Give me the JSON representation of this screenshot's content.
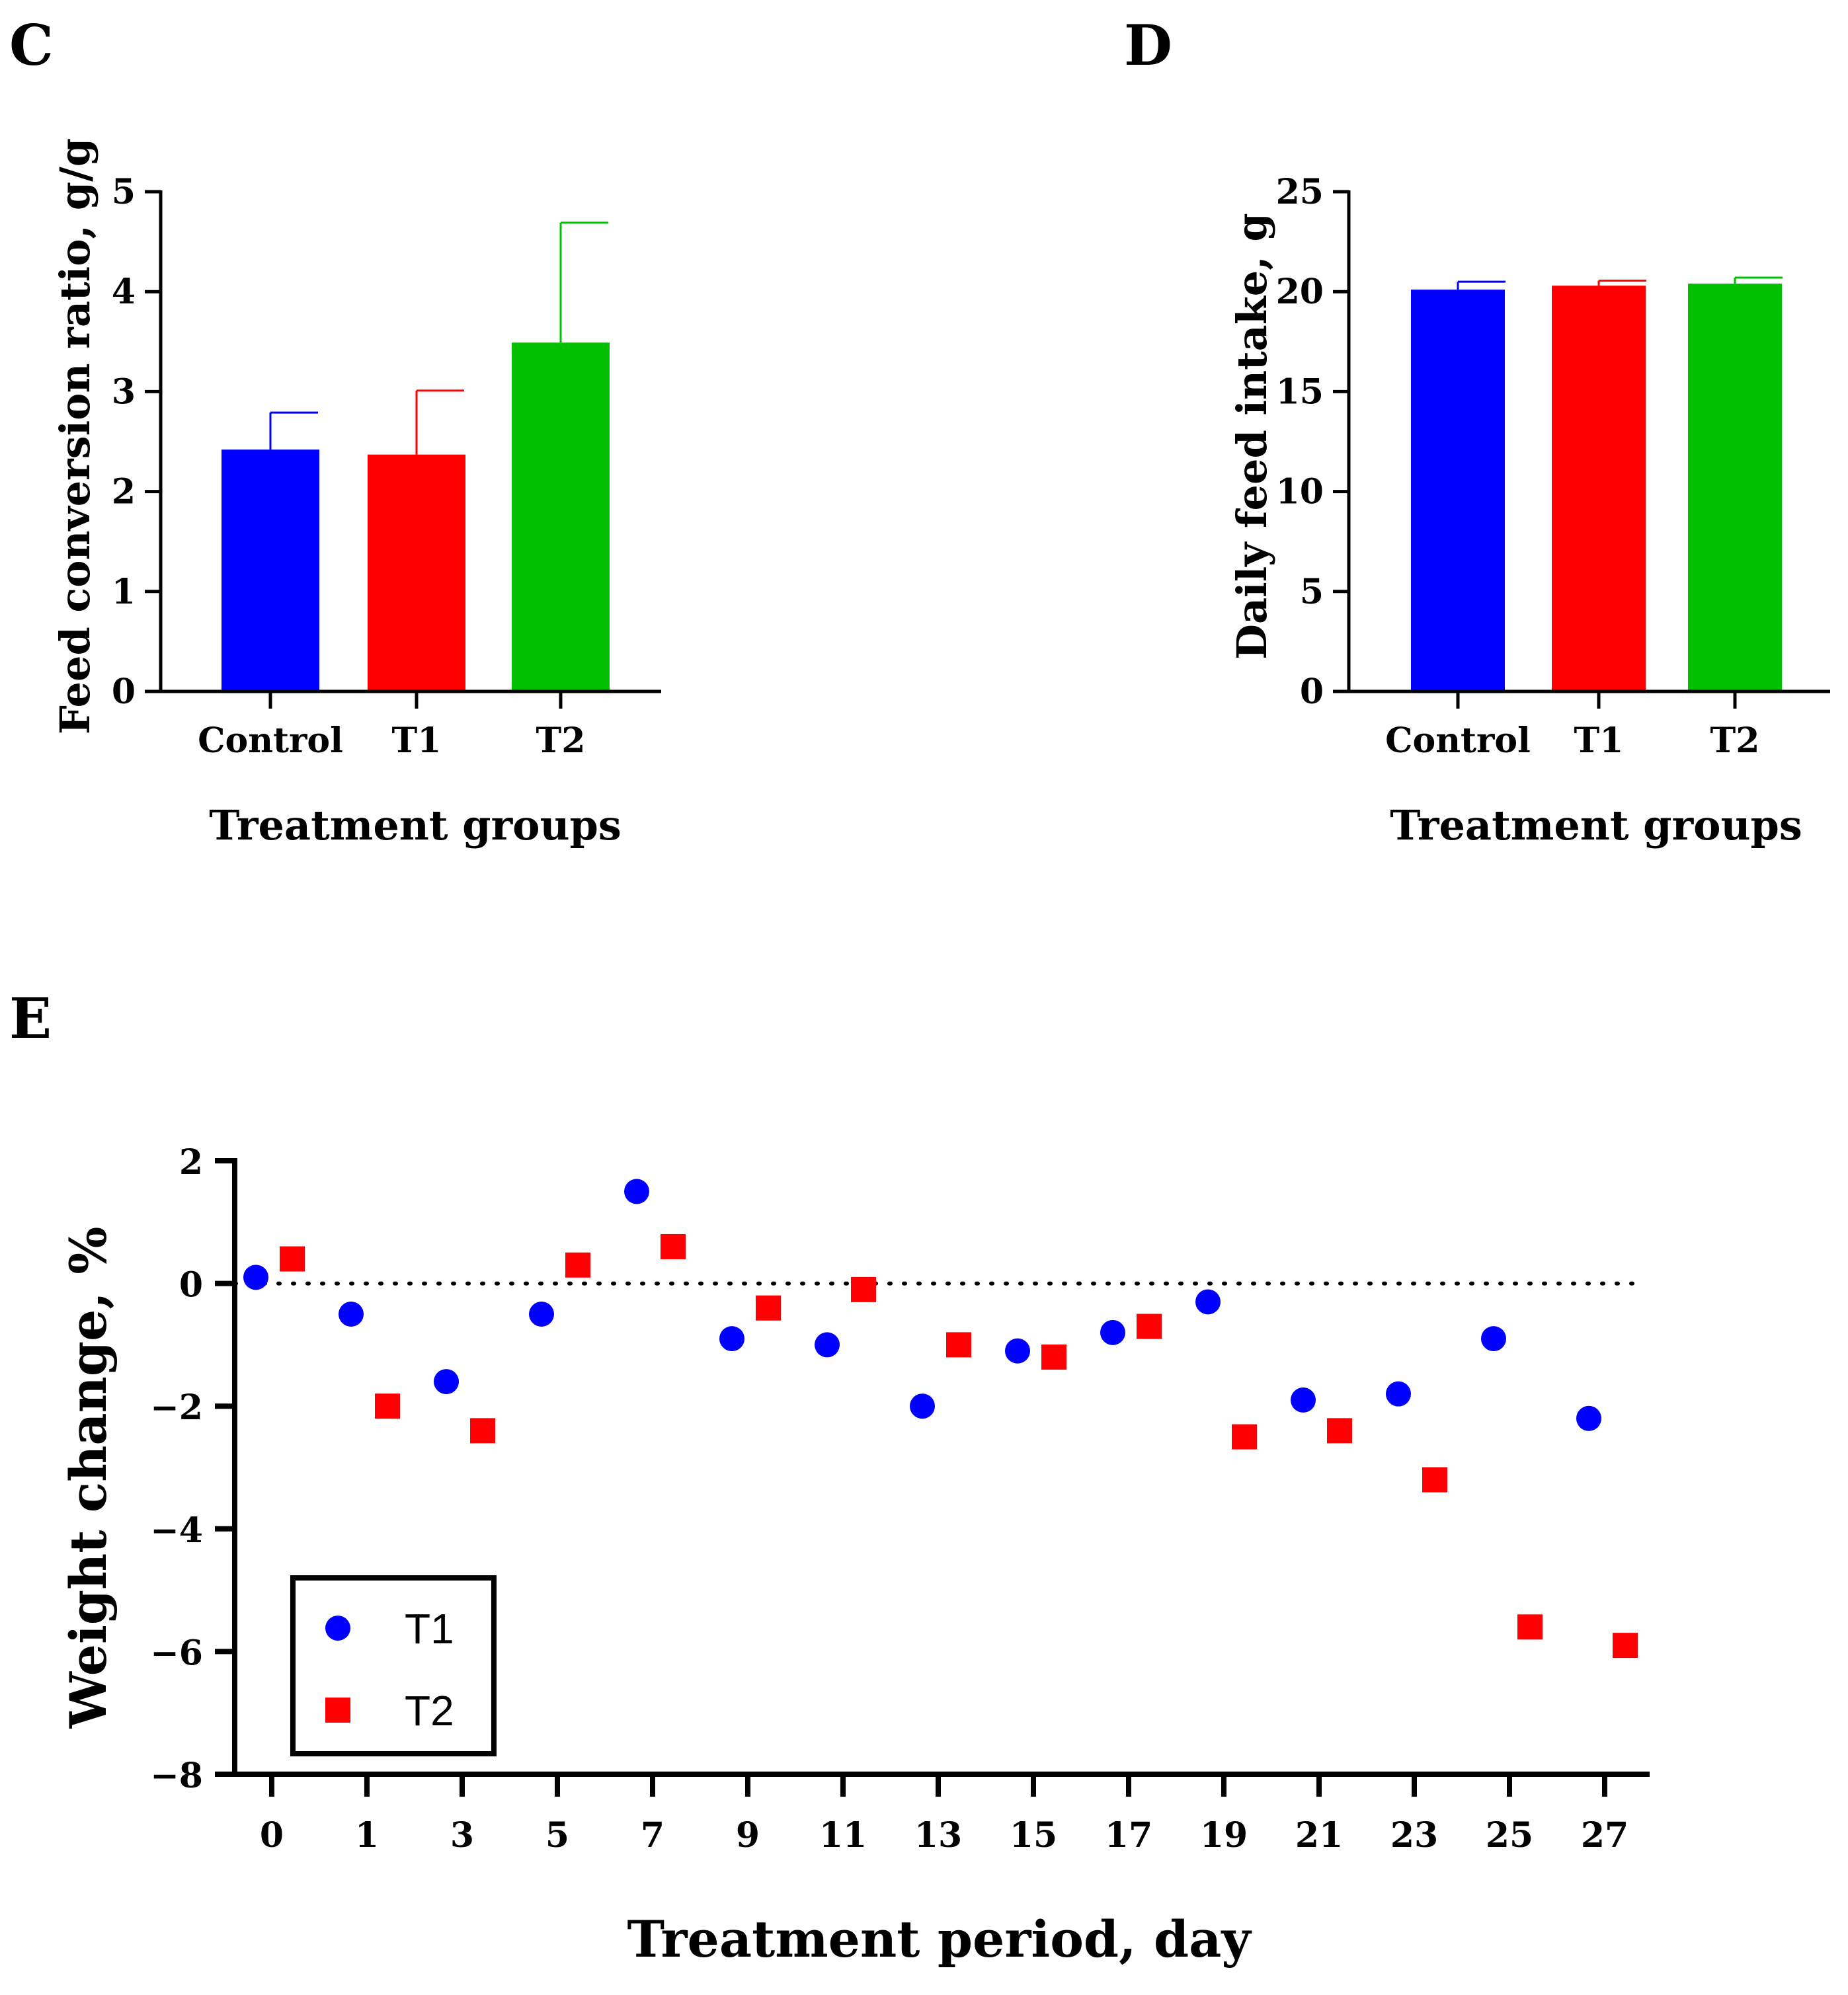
{
  "chart_data": [
    {
      "panel": "C",
      "type": "bar",
      "categories": [
        "Control",
        "T1",
        "T2"
      ],
      "values": [
        2.42,
        2.37,
        3.49
      ],
      "error_bars": [
        0.37,
        0.64,
        1.2
      ],
      "colors": [
        "#0000ff",
        "#ff0000",
        "#00c000"
      ],
      "xlabel": "Treatment groups",
      "ylabel": "Feed conversion ratio, g/g",
      "ylim": [
        0,
        5
      ],
      "yticks": [
        "0",
        "1",
        "2",
        "3",
        "4",
        "5"
      ],
      "ytick_values": [
        0,
        1,
        2,
        3,
        4,
        5
      ]
    },
    {
      "panel": "D",
      "type": "bar",
      "categories": [
        "Control",
        "T1",
        "T2"
      ],
      "values": [
        20.1,
        20.3,
        20.4
      ],
      "error_bars": [
        0.4,
        0.25,
        0.3
      ],
      "colors": [
        "#0000ff",
        "#ff0000",
        "#00c000"
      ],
      "xlabel": "Treatment groups",
      "ylabel": "Daily feed intake, g",
      "ylim": [
        0,
        25
      ],
      "yticks": [
        "0",
        "5",
        "10",
        "15",
        "20",
        "25"
      ],
      "ytick_values": [
        0,
        5,
        10,
        15,
        20,
        25
      ]
    },
    {
      "panel": "E",
      "type": "scatter",
      "categories": [
        "0",
        "1",
        "3",
        "5",
        "7",
        "9",
        "11",
        "13",
        "15",
        "17",
        "19",
        "21",
        "23",
        "25",
        "27"
      ],
      "series": [
        {
          "name": "T1",
          "marker": "circle",
          "color": "#0000ff",
          "values": [
            0.1,
            -0.5,
            -1.6,
            -0.5,
            1.5,
            -0.9,
            -1.0,
            -2.0,
            -1.1,
            -0.8,
            -0.3,
            -1.9,
            -1.8,
            -0.9,
            -2.2
          ]
        },
        {
          "name": "T2",
          "marker": "square",
          "color": "#ff0000",
          "values": [
            0.4,
            -2.0,
            -2.4,
            0.3,
            0.6,
            -0.4,
            -0.1,
            -1.0,
            -1.2,
            -0.7,
            -2.5,
            -2.4,
            -3.2,
            -5.6,
            -5.9
          ]
        }
      ],
      "reference_line": 0,
      "xlabel": "Treatment period, day",
      "ylabel": "Weight change, %",
      "ylim": [
        -8,
        2
      ],
      "yticks": [
        "−8",
        "−6",
        "−4",
        "−2",
        "0",
        "2"
      ],
      "ytick_values": [
        -8,
        -6,
        -4,
        -2,
        0,
        2
      ],
      "legend": [
        "T1",
        "T2"
      ],
      "legend_position": "bottom-left"
    }
  ]
}
